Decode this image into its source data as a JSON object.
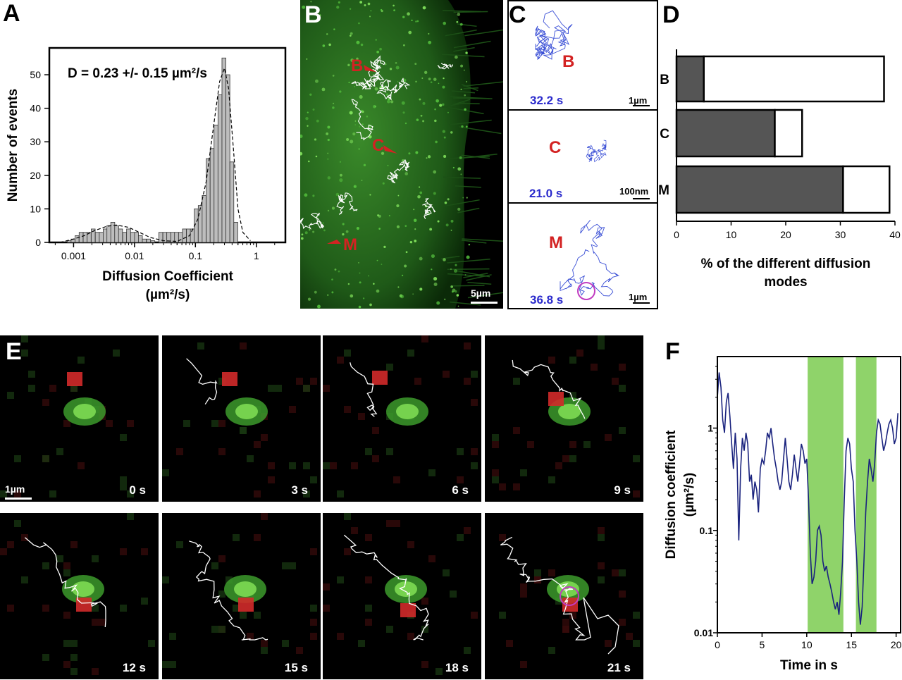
{
  "panels": {
    "a": "A",
    "b": "B",
    "c": "C",
    "d": "D",
    "e": "E",
    "f": "F"
  },
  "panel_b": {
    "markers": [
      "B",
      "C",
      "M"
    ],
    "scale": "5µm"
  },
  "panel_c": {
    "tracks": [
      {
        "label": "B",
        "time": "32.2 s",
        "scale": "1µm"
      },
      {
        "label": "C",
        "time": "21.0 s",
        "scale": "100nm"
      },
      {
        "label": "M",
        "time": "36.8 s",
        "scale": "1µm"
      }
    ]
  },
  "panel_e": {
    "frames": [
      "0 s",
      "3 s",
      "6 s",
      "9 s",
      "12 s",
      "15 s",
      "18 s",
      "21 s"
    ],
    "scale": "1µm"
  },
  "chart_data": [
    {
      "type": "bar",
      "panel": "A",
      "annotation": "D = 0.23 +/- 0.15 µm²/s",
      "xlabel": "Diffusion Coefficient",
      "xlabel2": "(µm²/s)",
      "ylabel": "Number of events",
      "x_scale": "log",
      "xlim": [
        0.0004,
        3
      ],
      "ylim": [
        0,
        58
      ],
      "x_ticks": [
        {
          "v": 0.001,
          "label": "0.001"
        },
        {
          "v": 0.01,
          "label": "0.01"
        },
        {
          "v": 0.1,
          "label": "0.1"
        },
        {
          "v": 1,
          "label": "1"
        }
      ],
      "y_ticks": [
        0,
        10,
        20,
        30,
        40,
        50
      ],
      "bin_log_width": 0.065,
      "bins": [
        {
          "x": 0.00085,
          "y": 0.5
        },
        {
          "x": 0.00098,
          "y": 1
        },
        {
          "x": 0.00114,
          "y": 2
        },
        {
          "x": 0.00133,
          "y": 3
        },
        {
          "x": 0.00155,
          "y": 3
        },
        {
          "x": 0.0018,
          "y": 3
        },
        {
          "x": 0.0021,
          "y": 4
        },
        {
          "x": 0.00245,
          "y": 3
        },
        {
          "x": 0.00285,
          "y": 3
        },
        {
          "x": 0.0033,
          "y": 4
        },
        {
          "x": 0.0038,
          "y": 5
        },
        {
          "x": 0.0044,
          "y": 6
        },
        {
          "x": 0.0051,
          "y": 5
        },
        {
          "x": 0.0059,
          "y": 4
        },
        {
          "x": 0.0069,
          "y": 3
        },
        {
          "x": 0.008,
          "y": 4
        },
        {
          "x": 0.0093,
          "y": 3
        },
        {
          "x": 0.0108,
          "y": 3
        },
        {
          "x": 0.0125,
          "y": 2
        },
        {
          "x": 0.0145,
          "y": 1
        },
        {
          "x": 0.017,
          "y": 1
        },
        {
          "x": 0.02,
          "y": 0.5
        },
        {
          "x": 0.027,
          "y": 3
        },
        {
          "x": 0.0315,
          "y": 3
        },
        {
          "x": 0.0365,
          "y": 3
        },
        {
          "x": 0.0425,
          "y": 3
        },
        {
          "x": 0.049,
          "y": 3
        },
        {
          "x": 0.057,
          "y": 3
        },
        {
          "x": 0.066,
          "y": 4
        },
        {
          "x": 0.077,
          "y": 4
        },
        {
          "x": 0.089,
          "y": 4
        },
        {
          "x": 0.103,
          "y": 10
        },
        {
          "x": 0.12,
          "y": 11
        },
        {
          "x": 0.139,
          "y": 14
        },
        {
          "x": 0.162,
          "y": 25
        },
        {
          "x": 0.188,
          "y": 28
        },
        {
          "x": 0.218,
          "y": 35
        },
        {
          "x": 0.253,
          "y": 44
        },
        {
          "x": 0.294,
          "y": 55
        },
        {
          "x": 0.341,
          "y": 50
        },
        {
          "x": 0.396,
          "y": 24
        },
        {
          "x": 0.46,
          "y": 6
        }
      ],
      "fit_curve": [
        {
          "x": 0.0006,
          "y": 0
        },
        {
          "x": 0.001,
          "y": 1
        },
        {
          "x": 0.0015,
          "y": 2
        },
        {
          "x": 0.0022,
          "y": 3.5
        },
        {
          "x": 0.0035,
          "y": 4.8
        },
        {
          "x": 0.005,
          "y": 5.2
        },
        {
          "x": 0.008,
          "y": 4.5
        },
        {
          "x": 0.012,
          "y": 3
        },
        {
          "x": 0.018,
          "y": 1.5
        },
        {
          "x": 0.03,
          "y": 0.5
        },
        {
          "x": 0.05,
          "y": 0.3
        },
        {
          "x": 0.08,
          "y": 2
        },
        {
          "x": 0.11,
          "y": 7
        },
        {
          "x": 0.15,
          "y": 18
        },
        {
          "x": 0.2,
          "y": 35
        },
        {
          "x": 0.25,
          "y": 48
        },
        {
          "x": 0.3,
          "y": 52
        },
        {
          "x": 0.35,
          "y": 46
        },
        {
          "x": 0.42,
          "y": 28
        },
        {
          "x": 0.5,
          "y": 10
        },
        {
          "x": 0.6,
          "y": 3
        },
        {
          "x": 0.8,
          "y": 0.5
        }
      ]
    },
    {
      "type": "bar",
      "panel": "D",
      "orientation": "horizontal",
      "categories": [
        "B",
        "C",
        "M"
      ],
      "series": [
        {
          "values": [
            5,
            18,
            30.5
          ],
          "color": "#555555"
        },
        {
          "values": [
            33,
            5,
            8.5
          ],
          "color": "#ffffff"
        }
      ],
      "xlabel": "% of the different diffusion",
      "xlabel2": "modes",
      "xlim": [
        0,
        40
      ],
      "x_ticks": [
        0,
        10,
        20,
        30,
        40
      ]
    },
    {
      "type": "line",
      "panel": "F",
      "xlabel": "Time in s",
      "ylabel": "Diffusion coefficient",
      "ylabel2": "(µm²/s)",
      "y_scale": "log",
      "xlim": [
        0,
        20.5
      ],
      "ylim": [
        0.01,
        5
      ],
      "x_ticks": [
        0,
        5,
        10,
        15,
        20
      ],
      "y_ticks": [
        {
          "v": 0.01,
          "label": "0.01"
        },
        {
          "v": 0.1,
          "label": "0.1"
        },
        {
          "v": 1,
          "label": "1"
        }
      ],
      "highlight_color": "#8fd36a",
      "highlight_ranges": [
        [
          10.1,
          14.1
        ],
        [
          15.5,
          17.8
        ]
      ],
      "line_color": "#1a237e",
      "x": [
        0,
        0.2,
        0.4,
        0.6,
        0.8,
        1.0,
        1.2,
        1.4,
        1.6,
        1.8,
        2.0,
        2.2,
        2.4,
        2.6,
        2.8,
        3.0,
        3.2,
        3.4,
        3.6,
        3.8,
        4.0,
        4.2,
        4.4,
        4.6,
        4.8,
        5.0,
        5.2,
        5.4,
        5.6,
        5.8,
        6.0,
        6.2,
        6.4,
        6.6,
        6.8,
        7.0,
        7.2,
        7.4,
        7.6,
        7.8,
        8.0,
        8.2,
        8.4,
        8.6,
        8.8,
        9.0,
        9.2,
        9.4,
        9.6,
        9.8,
        10.0,
        10.2,
        10.4,
        10.6,
        10.8,
        11.0,
        11.2,
        11.4,
        11.6,
        11.8,
        12.0,
        12.2,
        12.4,
        12.6,
        12.8,
        13.0,
        13.2,
        13.4,
        13.6,
        13.8,
        14.0,
        14.2,
        14.4,
        14.6,
        14.8,
        15.0,
        15.2,
        15.4,
        15.6,
        15.8,
        16.0,
        16.2,
        16.4,
        16.6,
        16.8,
        17.0,
        17.2,
        17.4,
        17.6,
        17.8,
        18.0,
        18.2,
        18.4,
        18.6,
        18.8,
        19.0,
        19.2,
        19.4,
        19.6,
        19.8,
        20.0,
        20.2
      ],
      "y": [
        2.0,
        3.5,
        2.5,
        1.2,
        0.9,
        1.8,
        2.2,
        1.3,
        0.7,
        0.4,
        0.9,
        0.5,
        0.08,
        0.4,
        0.8,
        0.6,
        0.9,
        0.7,
        0.3,
        0.35,
        0.2,
        0.3,
        0.25,
        0.15,
        0.4,
        0.5,
        0.45,
        0.6,
        0.9,
        0.8,
        1.0,
        0.7,
        0.5,
        0.4,
        0.3,
        0.25,
        0.3,
        0.5,
        0.8,
        0.5,
        0.3,
        0.25,
        0.35,
        0.55,
        0.4,
        0.3,
        0.45,
        0.7,
        0.6,
        0.45,
        0.5,
        0.2,
        0.06,
        0.03,
        0.035,
        0.05,
        0.1,
        0.11,
        0.09,
        0.05,
        0.04,
        0.045,
        0.035,
        0.03,
        0.025,
        0.02,
        0.017,
        0.02,
        0.015,
        0.025,
        0.05,
        0.2,
        0.6,
        0.8,
        0.7,
        0.4,
        0.3,
        0.1,
        0.05,
        0.02,
        0.012,
        0.018,
        0.05,
        0.15,
        0.3,
        0.5,
        0.4,
        0.3,
        0.45,
        0.9,
        1.2,
        1.1,
        0.8,
        0.6,
        0.7,
        0.9,
        1.1,
        1.2,
        1.0,
        0.7,
        0.8,
        1.4
      ]
    }
  ]
}
